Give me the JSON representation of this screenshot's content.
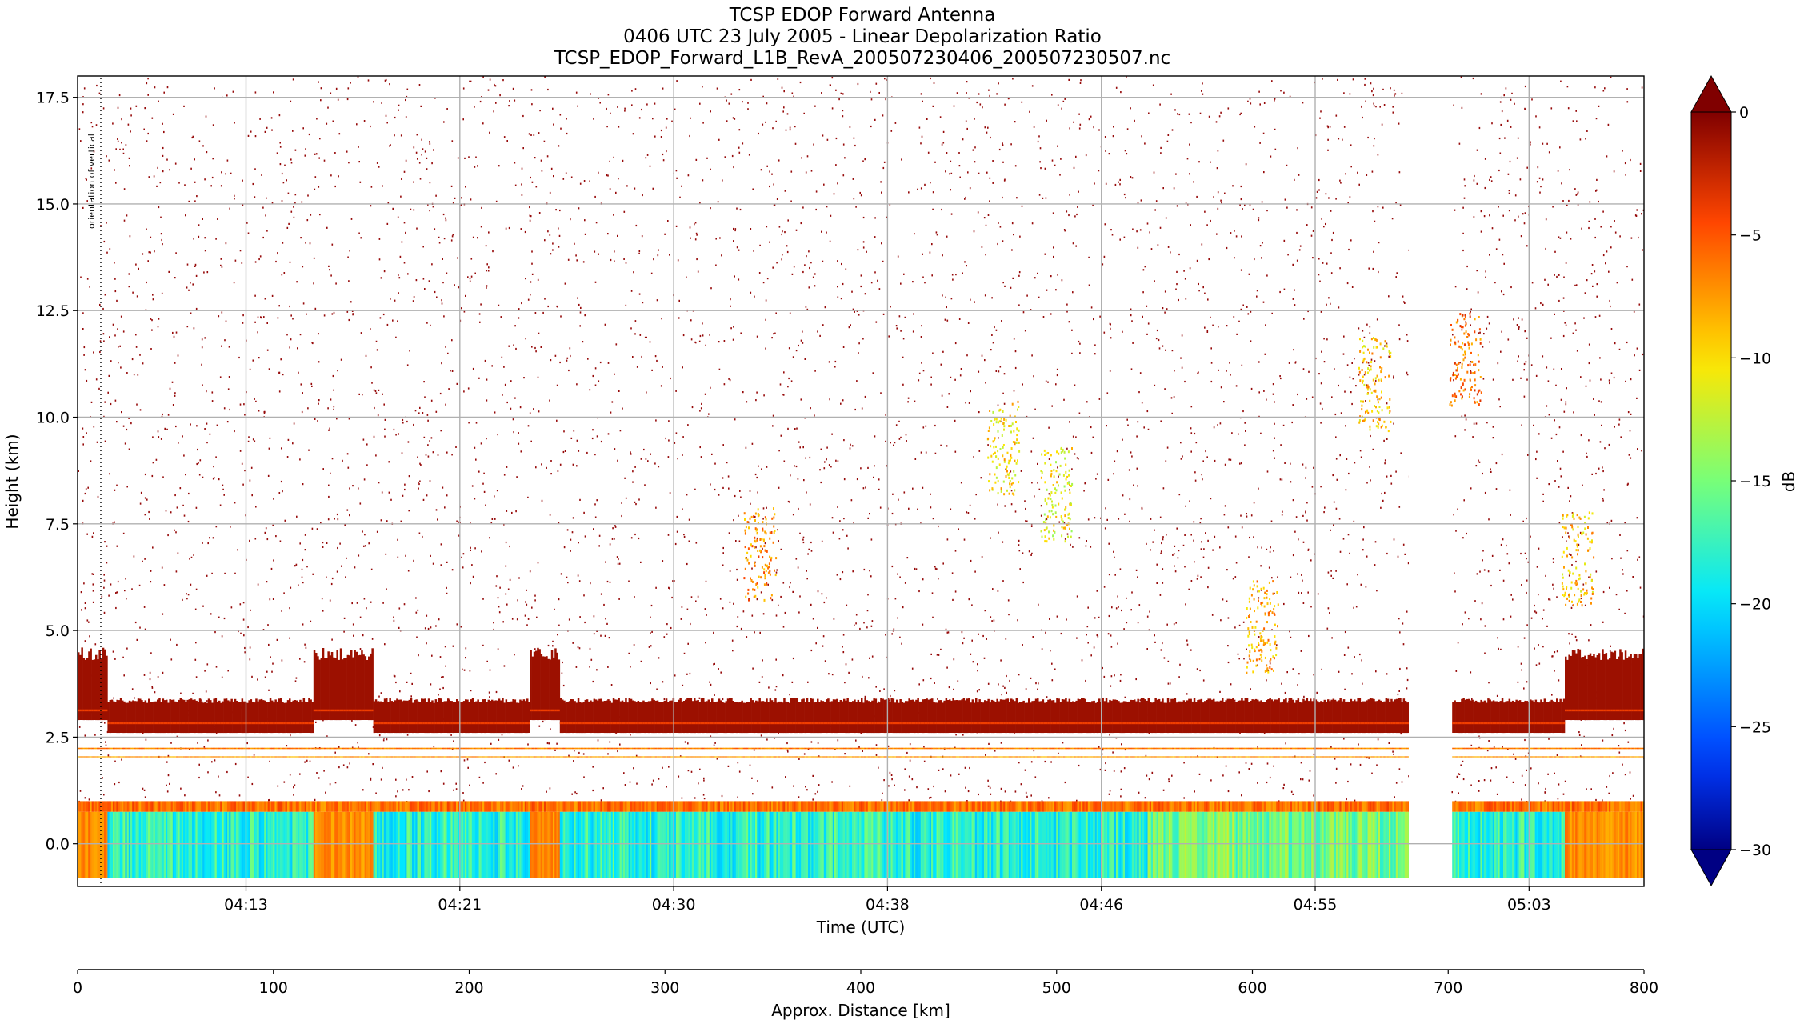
{
  "chart_data": {
    "type": "heatmap",
    "title_lines": [
      "TCSP EDOP Forward Antenna",
      "0406 UTC 23 July 2005 - Linear Depolarization Ratio",
      "TCSP_EDOP_Forward_L1B_RevA_200507230406_200507230507.nc"
    ],
    "xlabel": "Time (UTC)",
    "ylabel": "Height (km)",
    "x2label": "Approx. Distance [km]",
    "colorbar_label": "dB",
    "ylim": [
      -1.0,
      18.0
    ],
    "y_ticks": [
      0.0,
      2.5,
      5.0,
      7.5,
      10.0,
      12.5,
      15.0,
      17.5
    ],
    "y_tick_labels": [
      "0.0",
      "2.5",
      "5.0",
      "7.5",
      "10.0",
      "12.5",
      "15.0",
      "17.5"
    ],
    "time_ticks": [
      {
        "label": "04:13",
        "minutes": 6.3
      },
      {
        "label": "04:21",
        "minutes": 14.3
      },
      {
        "label": "04:30",
        "minutes": 22.3
      },
      {
        "label": "04:38",
        "minutes": 30.3
      },
      {
        "label": "04:46",
        "minutes": 38.3
      },
      {
        "label": "04:55",
        "minutes": 46.3
      },
      {
        "label": "05:03",
        "minutes": 54.3
      }
    ],
    "time_range_minutes": [
      0,
      58.6
    ],
    "distance_range_km": [
      0,
      800
    ],
    "distance_ticks": [
      0,
      100,
      200,
      300,
      400,
      500,
      600,
      700,
      800
    ],
    "colorbar_range_db": [
      -30,
      0
    ],
    "colorbar_ticks": [
      0,
      -5,
      -10,
      -15,
      -20,
      -25,
      -30
    ],
    "colorbar_tick_labels": [
      "0",
      "−5",
      "−10",
      "−15",
      "−20",
      "−25",
      "−30"
    ],
    "data_gap_minutes": [
      49.8,
      51.4
    ],
    "annotation_text": "orientation of vertical",
    "layers": {
      "surface_band_km": [
        -0.8,
        0.75
      ],
      "surface_band_db": -18,
      "bright_band_km": [
        2.6,
        3.3
      ],
      "bright_band_db": -1,
      "nadir_spike_segments_minutes": [
        [
          0.0,
          1.1
        ],
        [
          8.8,
          11.0
        ],
        [
          16.9,
          18.0
        ],
        [
          55.6,
          58.6
        ]
      ],
      "nadir_spike_top_km": 4.6,
      "nadir_spike_surface_db": -7
    },
    "features": [
      {
        "minutes": 25.5,
        "km": 6.8,
        "db": -7
      },
      {
        "minutes": 34.6,
        "km": 9.3,
        "db": -10
      },
      {
        "minutes": 36.6,
        "km": 8.2,
        "db": -11
      },
      {
        "minutes": 48.5,
        "km": 10.8,
        "db": -9
      },
      {
        "minutes": 51.9,
        "km": 11.4,
        "db": -6
      },
      {
        "minutes": 56.1,
        "km": 6.7,
        "db": -9
      },
      {
        "minutes": 44.3,
        "km": 5.1,
        "db": -8
      }
    ]
  }
}
